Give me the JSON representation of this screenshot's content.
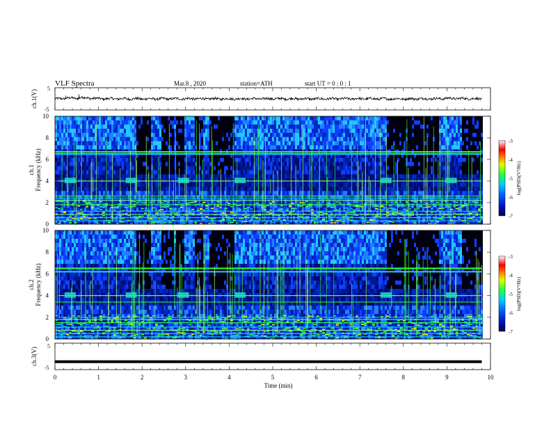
{
  "header": {
    "title": "VLF  Spectra",
    "date": "Mar.8  , 2020",
    "station": "station=ATH",
    "start": "start  UT  =   0  : 0  : 1"
  },
  "chart_data": [
    {
      "type": "line",
      "name": "ch1-voltage",
      "ylabel": "ch.1(V)",
      "ylim": [
        -5,
        5
      ],
      "yticks": [
        "5",
        "-5"
      ],
      "xlim": [
        0,
        10
      ],
      "note_values": "waveform hovering near 0 V, amplitude ~ ±0.6 V, spikes near 0.2 and 0.5 min",
      "x": [
        0,
        0.2,
        0.25,
        0.5,
        0.55,
        1,
        2,
        3,
        4,
        5,
        6,
        7,
        8,
        8.9,
        9.0,
        9.8
      ],
      "y": [
        0,
        0.4,
        1.5,
        0.5,
        2.0,
        0.3,
        0,
        0.2,
        0,
        0.2,
        0,
        0.1,
        0,
        0.3,
        0.8,
        0
      ]
    },
    {
      "type": "heatmap",
      "name": "ch1-spectrogram",
      "ylabel": "ch.1\nFrequency  (kHz)",
      "ylim": [
        0,
        10
      ],
      "yticks": [
        "0",
        "2",
        "4",
        "6",
        "8",
        "10"
      ],
      "xlim": [
        0,
        10
      ],
      "colorbar": {
        "label": "log(PSD)(V²/Hz)",
        "range": [
          -7,
          -3
        ],
        "ticks": [
          "-3",
          "-4",
          "-5",
          "-6",
          "-7"
        ]
      },
      "bands_khz": [
        6.7,
        6.5,
        4.0,
        2.6,
        2.4,
        2.2,
        1.8,
        1.2,
        0.9,
        0.6,
        0.3
      ],
      "dark_intervals_min": [
        [
          1.85,
          2.2
        ],
        [
          2.4,
          2.7
        ],
        [
          2.75,
          2.95
        ],
        [
          3.2,
          3.4
        ],
        [
          3.5,
          4.1
        ],
        [
          7.6,
          8.8
        ],
        [
          9.3,
          9.8
        ]
      ]
    },
    {
      "type": "heatmap",
      "name": "ch2-spectrogram",
      "ylabel": "ch.2\nFrequency  (kHz)",
      "ylim": [
        0,
        10
      ],
      "yticks": [
        "0",
        "2",
        "4",
        "6",
        "8",
        "10"
      ],
      "xlim": [
        0,
        10
      ],
      "colorbar": {
        "label": "log(PSD)(V²/Hz)",
        "range": [
          -7,
          -3
        ],
        "ticks": [
          "-3",
          "-4",
          "-5",
          "-6",
          "-7"
        ]
      },
      "bands_khz": [
        6.5,
        6.2,
        4.0,
        3.4,
        2.0,
        1.8,
        1.5,
        1.1,
        0.8,
        0.5,
        0.2
      ],
      "dark_intervals_min": [
        [
          1.85,
          2.2
        ],
        [
          2.4,
          2.7
        ],
        [
          2.75,
          2.95
        ],
        [
          3.2,
          3.4
        ],
        [
          3.5,
          4.1
        ],
        [
          7.6,
          8.8
        ],
        [
          9.3,
          9.8
        ]
      ]
    },
    {
      "type": "line",
      "name": "ch3-voltage",
      "ylabel": "ch.3(V)",
      "ylim": [
        -5,
        5
      ],
      "yticks": [
        "5",
        "-5"
      ],
      "xlim": [
        0,
        10
      ],
      "x": [
        0,
        9.8
      ],
      "y": [
        -2,
        -2
      ]
    }
  ],
  "xaxis": {
    "label": "Time  (min)",
    "ticks": [
      "0",
      "1",
      "2",
      "3",
      "4",
      "5",
      "6",
      "7",
      "8",
      "9",
      "10"
    ]
  },
  "colors": {
    "dark": "#000a6e",
    "blue": "#1040ff",
    "cyan": "#20c8ff",
    "green": "#30ff30",
    "yellow": "#ffee00",
    "red": "#ff2020"
  }
}
